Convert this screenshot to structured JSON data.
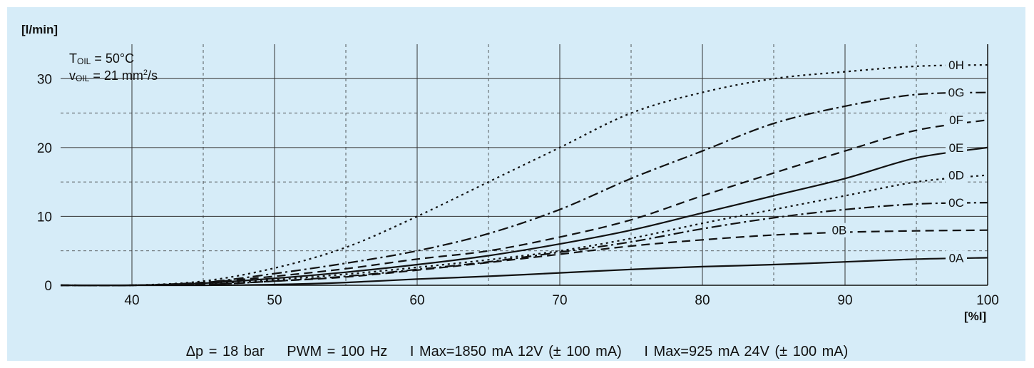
{
  "chart_data": {
    "type": "line",
    "ylabel": "[l/min]",
    "xlabel": "[%I]",
    "xlim": [
      35,
      100
    ],
    "ylim": [
      0,
      35
    ],
    "x_ticks": [
      40,
      50,
      60,
      70,
      80,
      90,
      100
    ],
    "y_ticks": [
      0,
      10,
      20,
      30
    ],
    "grid": true,
    "conditions": {
      "t_oil": {
        "symbol": "T",
        "sub": "OIL",
        "value": "= 50°C"
      },
      "v_oil": {
        "symbol": "v",
        "sub": "OIL",
        "value": "= 21 mm",
        "sup": "2",
        "unit_tail": "/s"
      }
    },
    "series": [
      {
        "name": "0A",
        "style": "solid",
        "x": [
          35,
          40,
          45,
          50,
          55,
          60,
          65,
          70,
          75,
          80,
          85,
          90,
          95,
          100
        ],
        "y": [
          0,
          0,
          0,
          0.1,
          0.4,
          0.9,
          1.3,
          1.8,
          2.3,
          2.7,
          3.0,
          3.4,
          3.8,
          4.0
        ]
      },
      {
        "name": "0B",
        "style": "dash",
        "x": [
          35,
          40,
          45,
          50,
          55,
          60,
          65,
          70,
          75,
          80,
          85,
          90,
          95,
          100
        ],
        "y": [
          0,
          0,
          0.1,
          0.6,
          1.2,
          2.2,
          3.3,
          4.5,
          5.7,
          6.6,
          7.3,
          7.7,
          7.9,
          8.0
        ]
      },
      {
        "name": "0C",
        "style": "dashdot",
        "x": [
          35,
          40,
          45,
          50,
          55,
          60,
          65,
          70,
          75,
          80,
          85,
          90,
          95,
          100
        ],
        "y": [
          0,
          0,
          0.1,
          0.6,
          1.3,
          2.3,
          3.4,
          4.8,
          6.3,
          8.2,
          9.8,
          11.0,
          11.8,
          12.0
        ]
      },
      {
        "name": "0D",
        "style": "dot",
        "x": [
          35,
          40,
          45,
          50,
          55,
          60,
          65,
          70,
          75,
          80,
          85,
          90,
          95,
          100
        ],
        "y": [
          0,
          0,
          0.2,
          0.8,
          1.6,
          2.6,
          3.7,
          5.0,
          6.8,
          9.0,
          11.0,
          13.0,
          15.0,
          16.0
        ]
      },
      {
        "name": "0E",
        "style": "solid",
        "x": [
          35,
          40,
          45,
          50,
          55,
          60,
          65,
          70,
          75,
          80,
          85,
          90,
          95,
          100
        ],
        "y": [
          0,
          0,
          0.3,
          1.0,
          1.9,
          3.0,
          4.3,
          6.0,
          8.0,
          10.5,
          13.0,
          15.5,
          18.5,
          20.0
        ]
      },
      {
        "name": "0F",
        "style": "dash",
        "x": [
          35,
          40,
          45,
          50,
          55,
          60,
          65,
          70,
          75,
          80,
          85,
          90,
          95,
          100
        ],
        "y": [
          0,
          0,
          0.4,
          1.3,
          2.4,
          3.8,
          5.0,
          7.0,
          9.5,
          13.0,
          16.3,
          19.5,
          22.5,
          24.0
        ]
      },
      {
        "name": "0G",
        "style": "dashdot",
        "x": [
          35,
          40,
          45,
          50,
          55,
          60,
          65,
          70,
          75,
          80,
          85,
          90,
          95,
          100
        ],
        "y": [
          0,
          0,
          0.4,
          1.7,
          3.2,
          5.0,
          7.5,
          11.0,
          15.5,
          19.5,
          23.5,
          26.0,
          27.7,
          28.0
        ]
      },
      {
        "name": "0H",
        "style": "dot",
        "x": [
          35,
          40,
          45,
          50,
          55,
          60,
          65,
          70,
          75,
          80,
          85,
          90,
          95,
          100
        ],
        "y": [
          0,
          0,
          0.6,
          2.5,
          5.5,
          10.0,
          15.0,
          20.0,
          25.0,
          28.0,
          30.0,
          31.0,
          31.8,
          32.0
        ]
      }
    ],
    "curve_labels": [
      {
        "text": "0A",
        "series": "0A",
        "x": 97.8,
        "y": 4.0
      },
      {
        "text": "0B",
        "series": "0B",
        "x": 89.6,
        "y": 8.0
      },
      {
        "text": "0C",
        "series": "0C",
        "x": 97.8,
        "y": 12.0
      },
      {
        "text": "0D",
        "series": "0D",
        "x": 97.8,
        "y": 16.0
      },
      {
        "text": "0E",
        "series": "0E",
        "x": 97.8,
        "y": 20.0
      },
      {
        "text": "0F",
        "series": "0F",
        "x": 97.8,
        "y": 24.0
      },
      {
        "text": "0G",
        "series": "0G",
        "x": 97.8,
        "y": 28.0
      },
      {
        "text": "0H",
        "series": "0H",
        "x": 97.8,
        "y": 32.0
      }
    ]
  },
  "footer": {
    "dp": "Δp = 18 bar",
    "pwm": "PWM = 100 Hz",
    "imax12": "I Max=1850 mA 12V (± 100 mA)",
    "imax24": "I Max=925 mA 24V (± 100 mA)"
  },
  "colors": {
    "background": "#d6ecf8",
    "line": "#111111",
    "grid": "#333333",
    "label_bg": "#d6ecf8"
  }
}
